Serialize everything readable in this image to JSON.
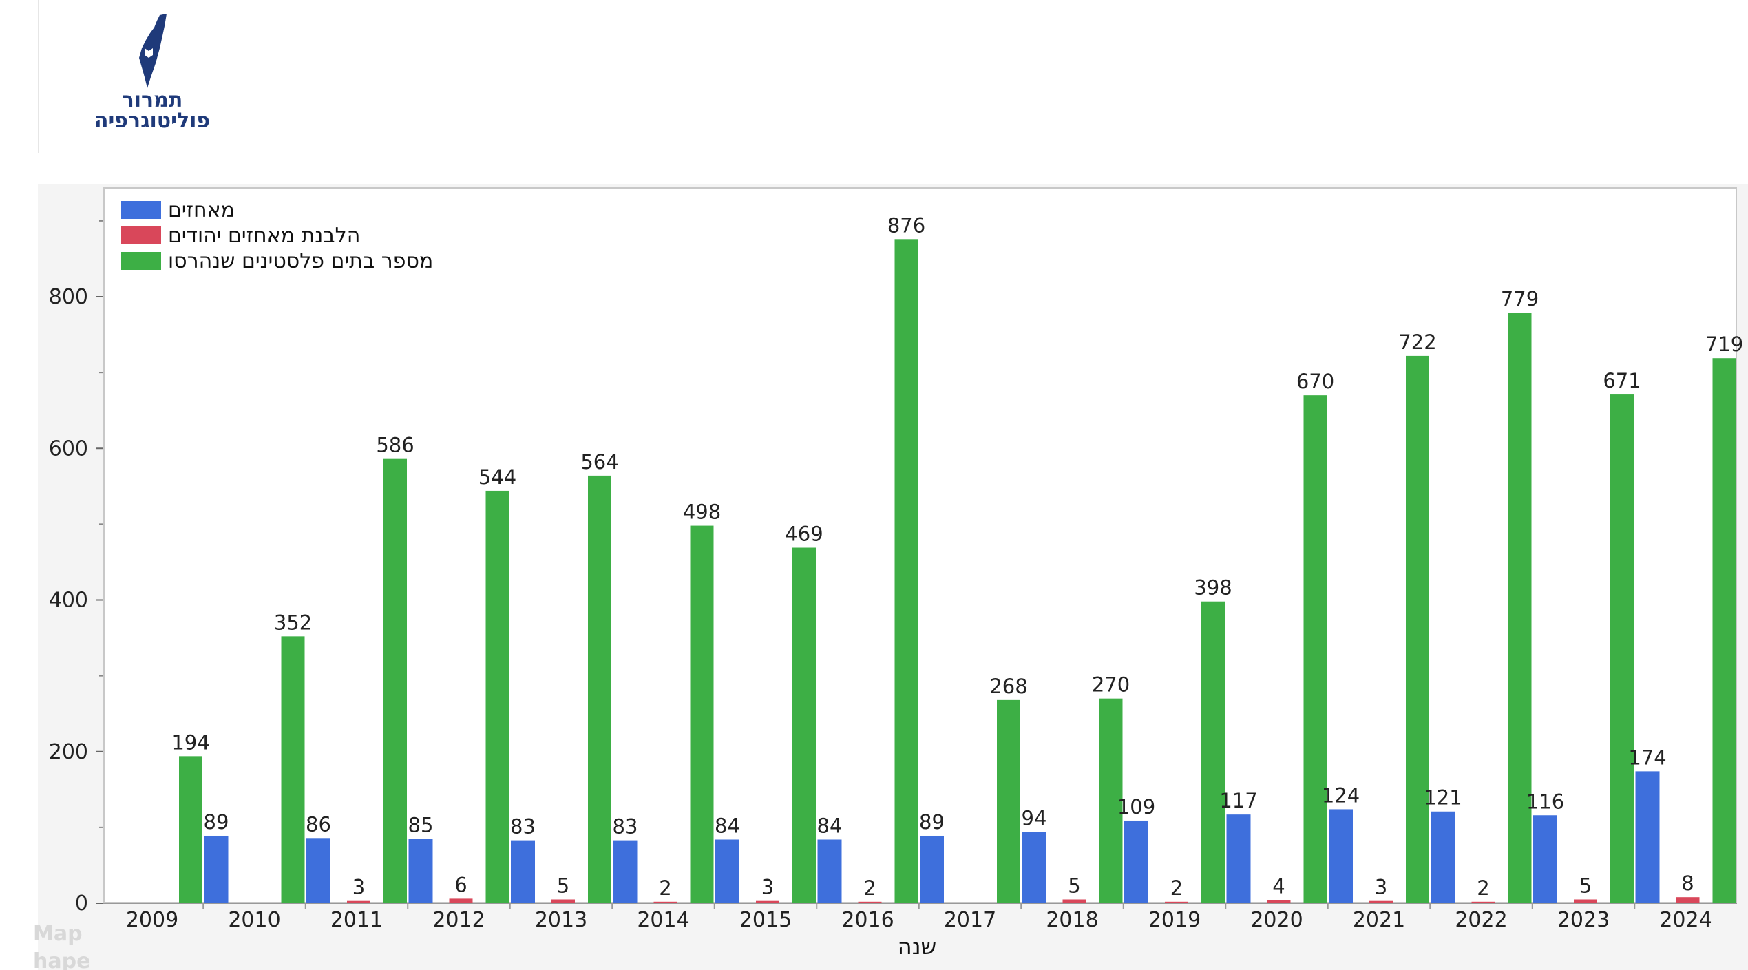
{
  "logo": {
    "line1": "תמרור",
    "line2": "פוליטוגרפיה",
    "color": "#1f3a7a"
  },
  "ghost_text": [
    "Map",
    "hape"
  ],
  "chart_data": {
    "type": "bar",
    "xlabel": "שנה",
    "ylabel": "",
    "ylim": [
      0,
      950
    ],
    "yticks": [
      0,
      200,
      400,
      600,
      800
    ],
    "categories": [
      "2009",
      "2010",
      "2011",
      "2012",
      "2013",
      "2014",
      "2015",
      "2016",
      "2017",
      "2018",
      "2019",
      "2020",
      "2021",
      "2022",
      "2023",
      "2024"
    ],
    "series": [
      {
        "name": "מאחזים",
        "color": "#3e6fdc",
        "values": [
          null,
          89,
          86,
          85,
          83,
          83,
          84,
          84,
          89,
          94,
          109,
          117,
          124,
          121,
          116,
          174
        ]
      },
      {
        "name": "הלבנת מאחזים יהודים",
        "color": "#d9475a",
        "values": [
          null,
          null,
          3,
          6,
          5,
          2,
          3,
          2,
          null,
          5,
          2,
          4,
          3,
          2,
          5,
          8
        ]
      },
      {
        "name": "מספר בתים פלסטינים שנהרסו",
        "color": "#3daf45",
        "values": [
          194,
          352,
          586,
          544,
          564,
          498,
          469,
          876,
          268,
          270,
          398,
          670,
          722,
          779,
          671,
          719
        ]
      }
    ],
    "legend_position": "top-left",
    "grid": false
  }
}
